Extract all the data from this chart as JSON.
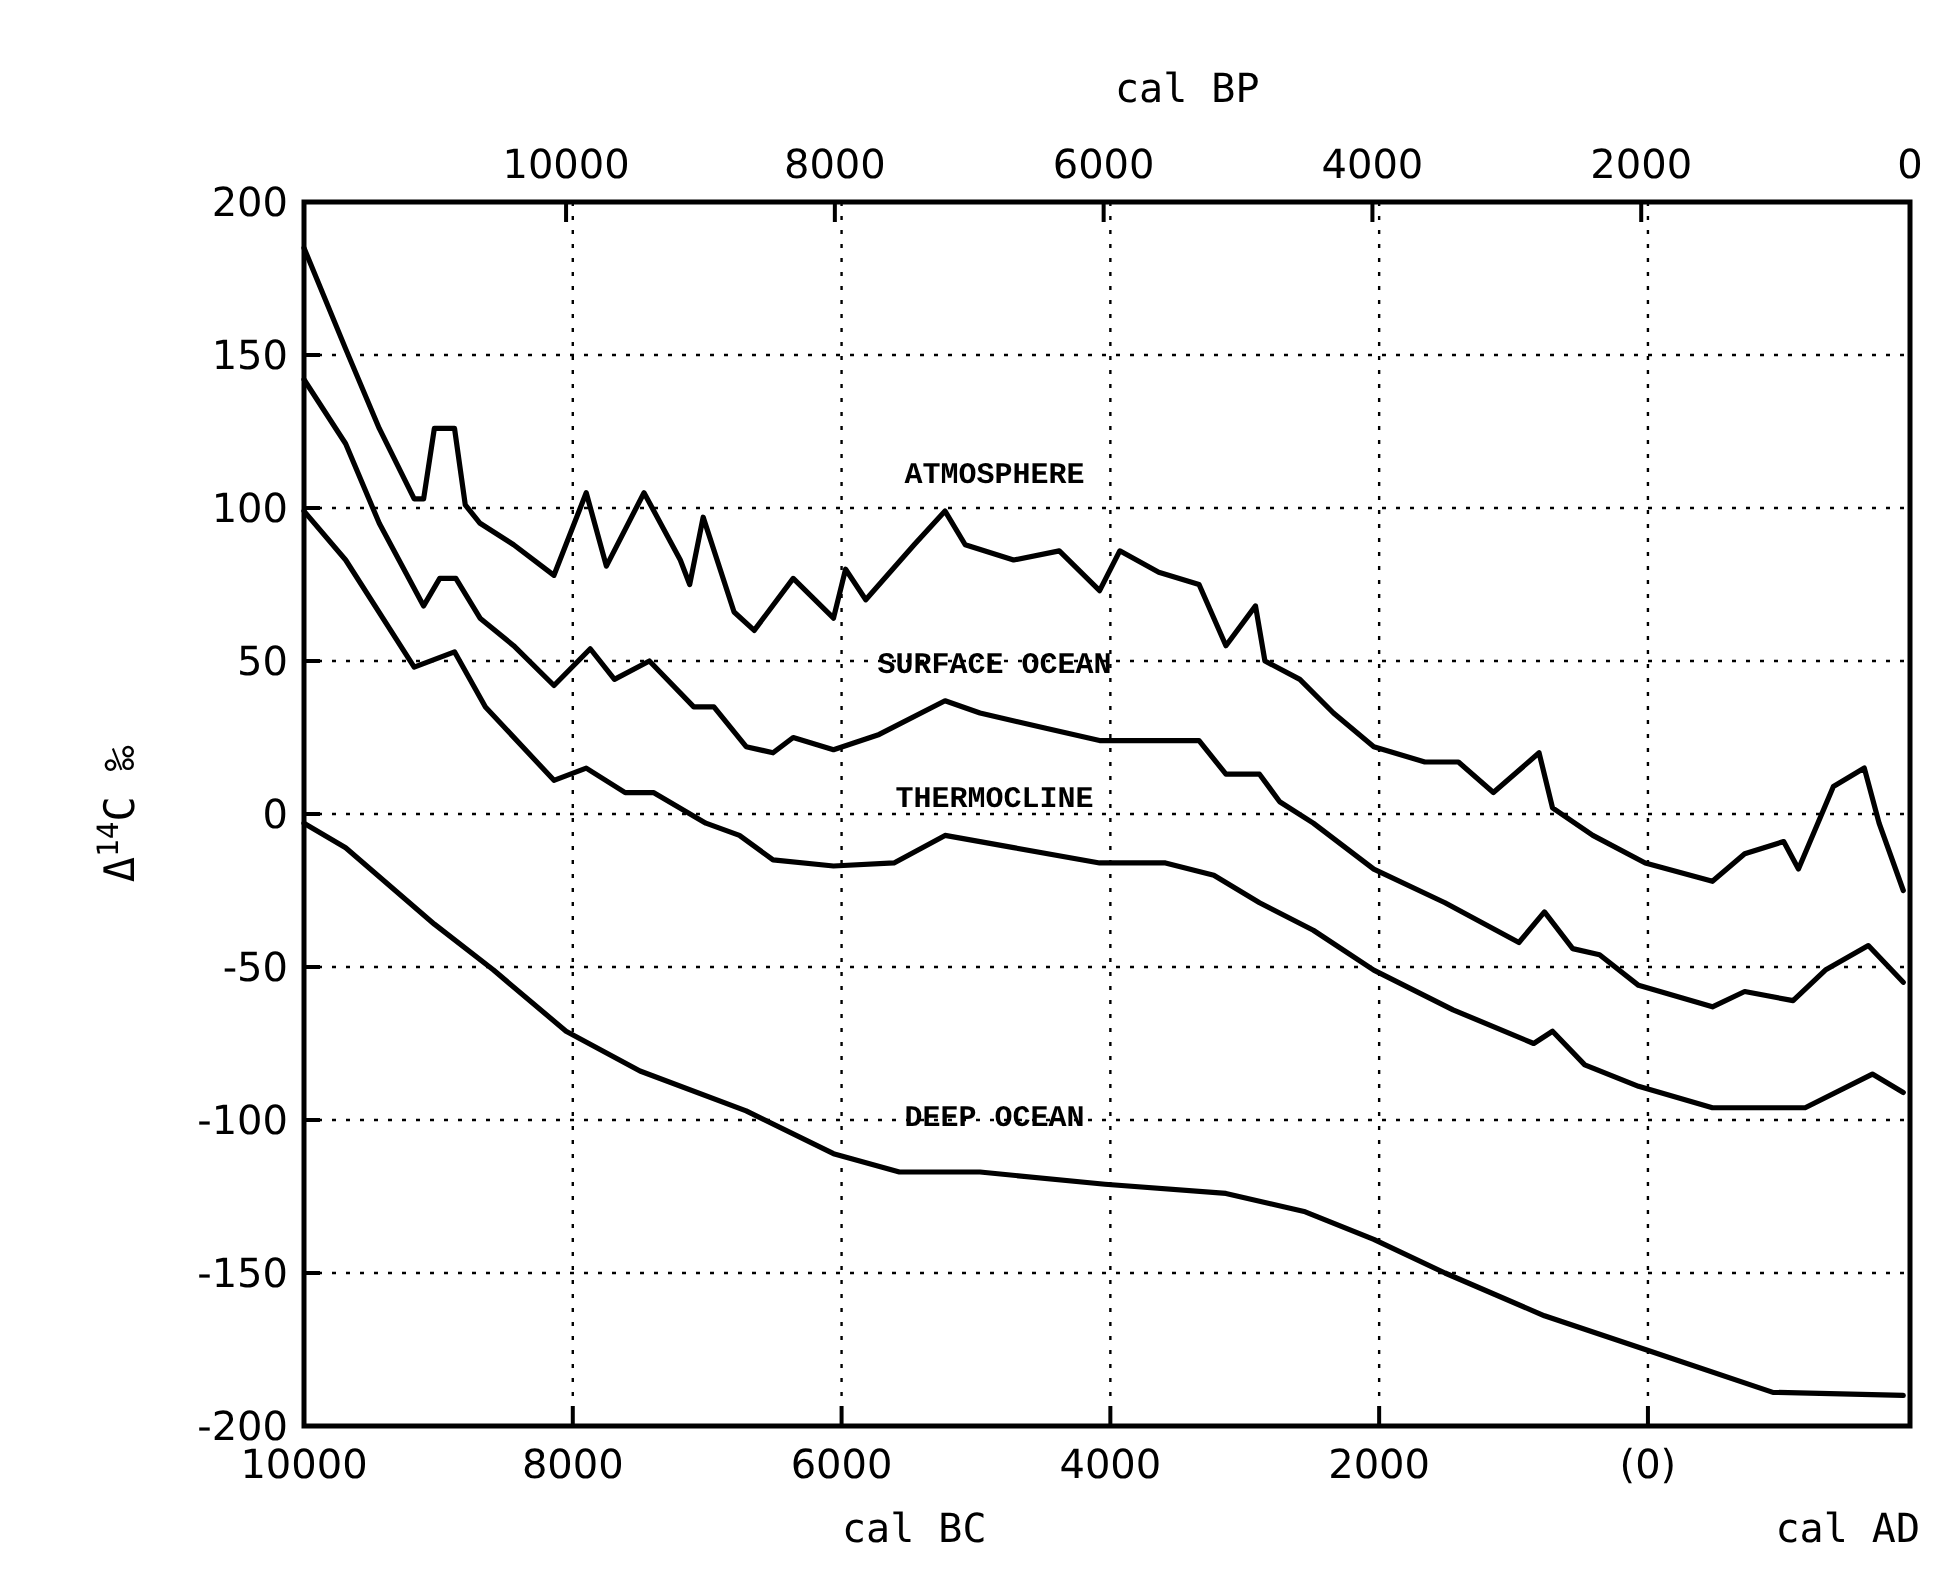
{
  "chart_data": {
    "type": "line",
    "xlabel": "cal BC",
    "x2label": "cal BP",
    "ylabel": "Δ$^{14}$C  ‰",
    "annotations": [
      "cal AD"
    ],
    "xlim": [
      10000,
      -1950
    ],
    "xticks": [
      10000,
      8000,
      6000,
      4000,
      2000,
      {
        "value": 0,
        "label": "(0)"
      }
    ],
    "x2lim": [
      11950,
      0
    ],
    "x2ticks": [
      10000,
      8000,
      6000,
      4000,
      2000,
      0
    ],
    "ylim": [
      -200,
      200
    ],
    "yticks": [
      -200,
      -150,
      -100,
      -50,
      0,
      50,
      100,
      150,
      200
    ],
    "grid": true,
    "marker": "none",
    "line_style": "solid",
    "series": [
      {
        "name": "ATMOSPHERE",
        "color": "#000000",
        "x": [
          10000,
          9690,
          9440,
          9180,
          9110,
          9030,
          8880,
          8800,
          8690,
          8440,
          8140,
          7900,
          7750,
          7470,
          7200,
          7130,
          7030,
          6800,
          6650,
          6360,
          6060,
          5970,
          5820,
          5460,
          5230,
          5080,
          4720,
          4380,
          4080,
          3930,
          3640,
          3340,
          3140,
          2920,
          2850,
          2590,
          2340,
          2040,
          1660,
          1410,
          1150,
          810,
          710,
          410,
          20,
          -480,
          -720,
          -1010,
          -1120,
          -1380,
          -1610,
          -1720,
          -1900
        ],
        "values": [
          185,
          152,
          126,
          103,
          103,
          126,
          126,
          101,
          95,
          88,
          78,
          105,
          81,
          105,
          83,
          75,
          97,
          66,
          60,
          77,
          64,
          80,
          70,
          88,
          99,
          88,
          83,
          86,
          73,
          86,
          79,
          75,
          55,
          68,
          50,
          44,
          33,
          22,
          17,
          17,
          7,
          20,
          2,
          -7,
          -16,
          -22,
          -13,
          -9,
          -18,
          9,
          15,
          -3,
          -25
        ]
      },
      {
        "name": "SURFACE OCEAN",
        "color": "#000000",
        "x": [
          10000,
          9690,
          9440,
          9110,
          8990,
          8870,
          8690,
          8440,
          8140,
          7870,
          7690,
          7430,
          7100,
          6950,
          6710,
          6510,
          6360,
          6060,
          5720,
          5230,
          4970,
          4480,
          4080,
          3740,
          3340,
          3140,
          2890,
          2740,
          2490,
          2040,
          1510,
          960,
          770,
          560,
          360,
          70,
          -480,
          -720,
          -1080,
          -1320,
          -1640,
          -1900
        ],
        "values": [
          142,
          121,
          95,
          68,
          77,
          77,
          64,
          55,
          42,
          54,
          44,
          50,
          35,
          35,
          22,
          20,
          25,
          21,
          26,
          37,
          33,
          28,
          24,
          24,
          24,
          13,
          13,
          4,
          -3,
          -18,
          -29,
          -42,
          -32,
          -44,
          -46,
          -56,
          -63,
          -58,
          -61,
          -51,
          -43,
          -55
        ]
      },
      {
        "name": "THERMOCLINE",
        "color": "#000000",
        "x": [
          10000,
          9690,
          9180,
          8880,
          8650,
          8140,
          7900,
          7610,
          7400,
          7010,
          6760,
          6510,
          6060,
          5610,
          5230,
          4720,
          4080,
          3590,
          3230,
          2890,
          2490,
          2040,
          1450,
          850,
          710,
          470,
          70,
          -480,
          -1170,
          -1670,
          -1900
        ],
        "values": [
          99,
          83,
          48,
          53,
          35,
          11,
          15,
          7,
          7,
          -3,
          -7,
          -15,
          -17,
          -16,
          -7,
          -11,
          -16,
          -16,
          -20,
          -29,
          -38,
          -51,
          -64,
          -75,
          -71,
          -82,
          -89,
          -96,
          -96,
          -85,
          -91
        ]
      },
      {
        "name": "DEEP OCEAN",
        "color": "#000000",
        "x": [
          10000,
          9690,
          9030,
          8590,
          8050,
          7500,
          6710,
          6060,
          5570,
          4970,
          4040,
          3140,
          2550,
          2040,
          1510,
          770,
          20,
          -930,
          -1900
        ],
        "values": [
          -3,
          -11,
          -36,
          -51,
          -71,
          -84,
          -97,
          -111,
          -117,
          -117,
          -121,
          -124,
          -130,
          -139,
          -150,
          -164,
          -175,
          -189,
          -190
        ]
      }
    ]
  }
}
